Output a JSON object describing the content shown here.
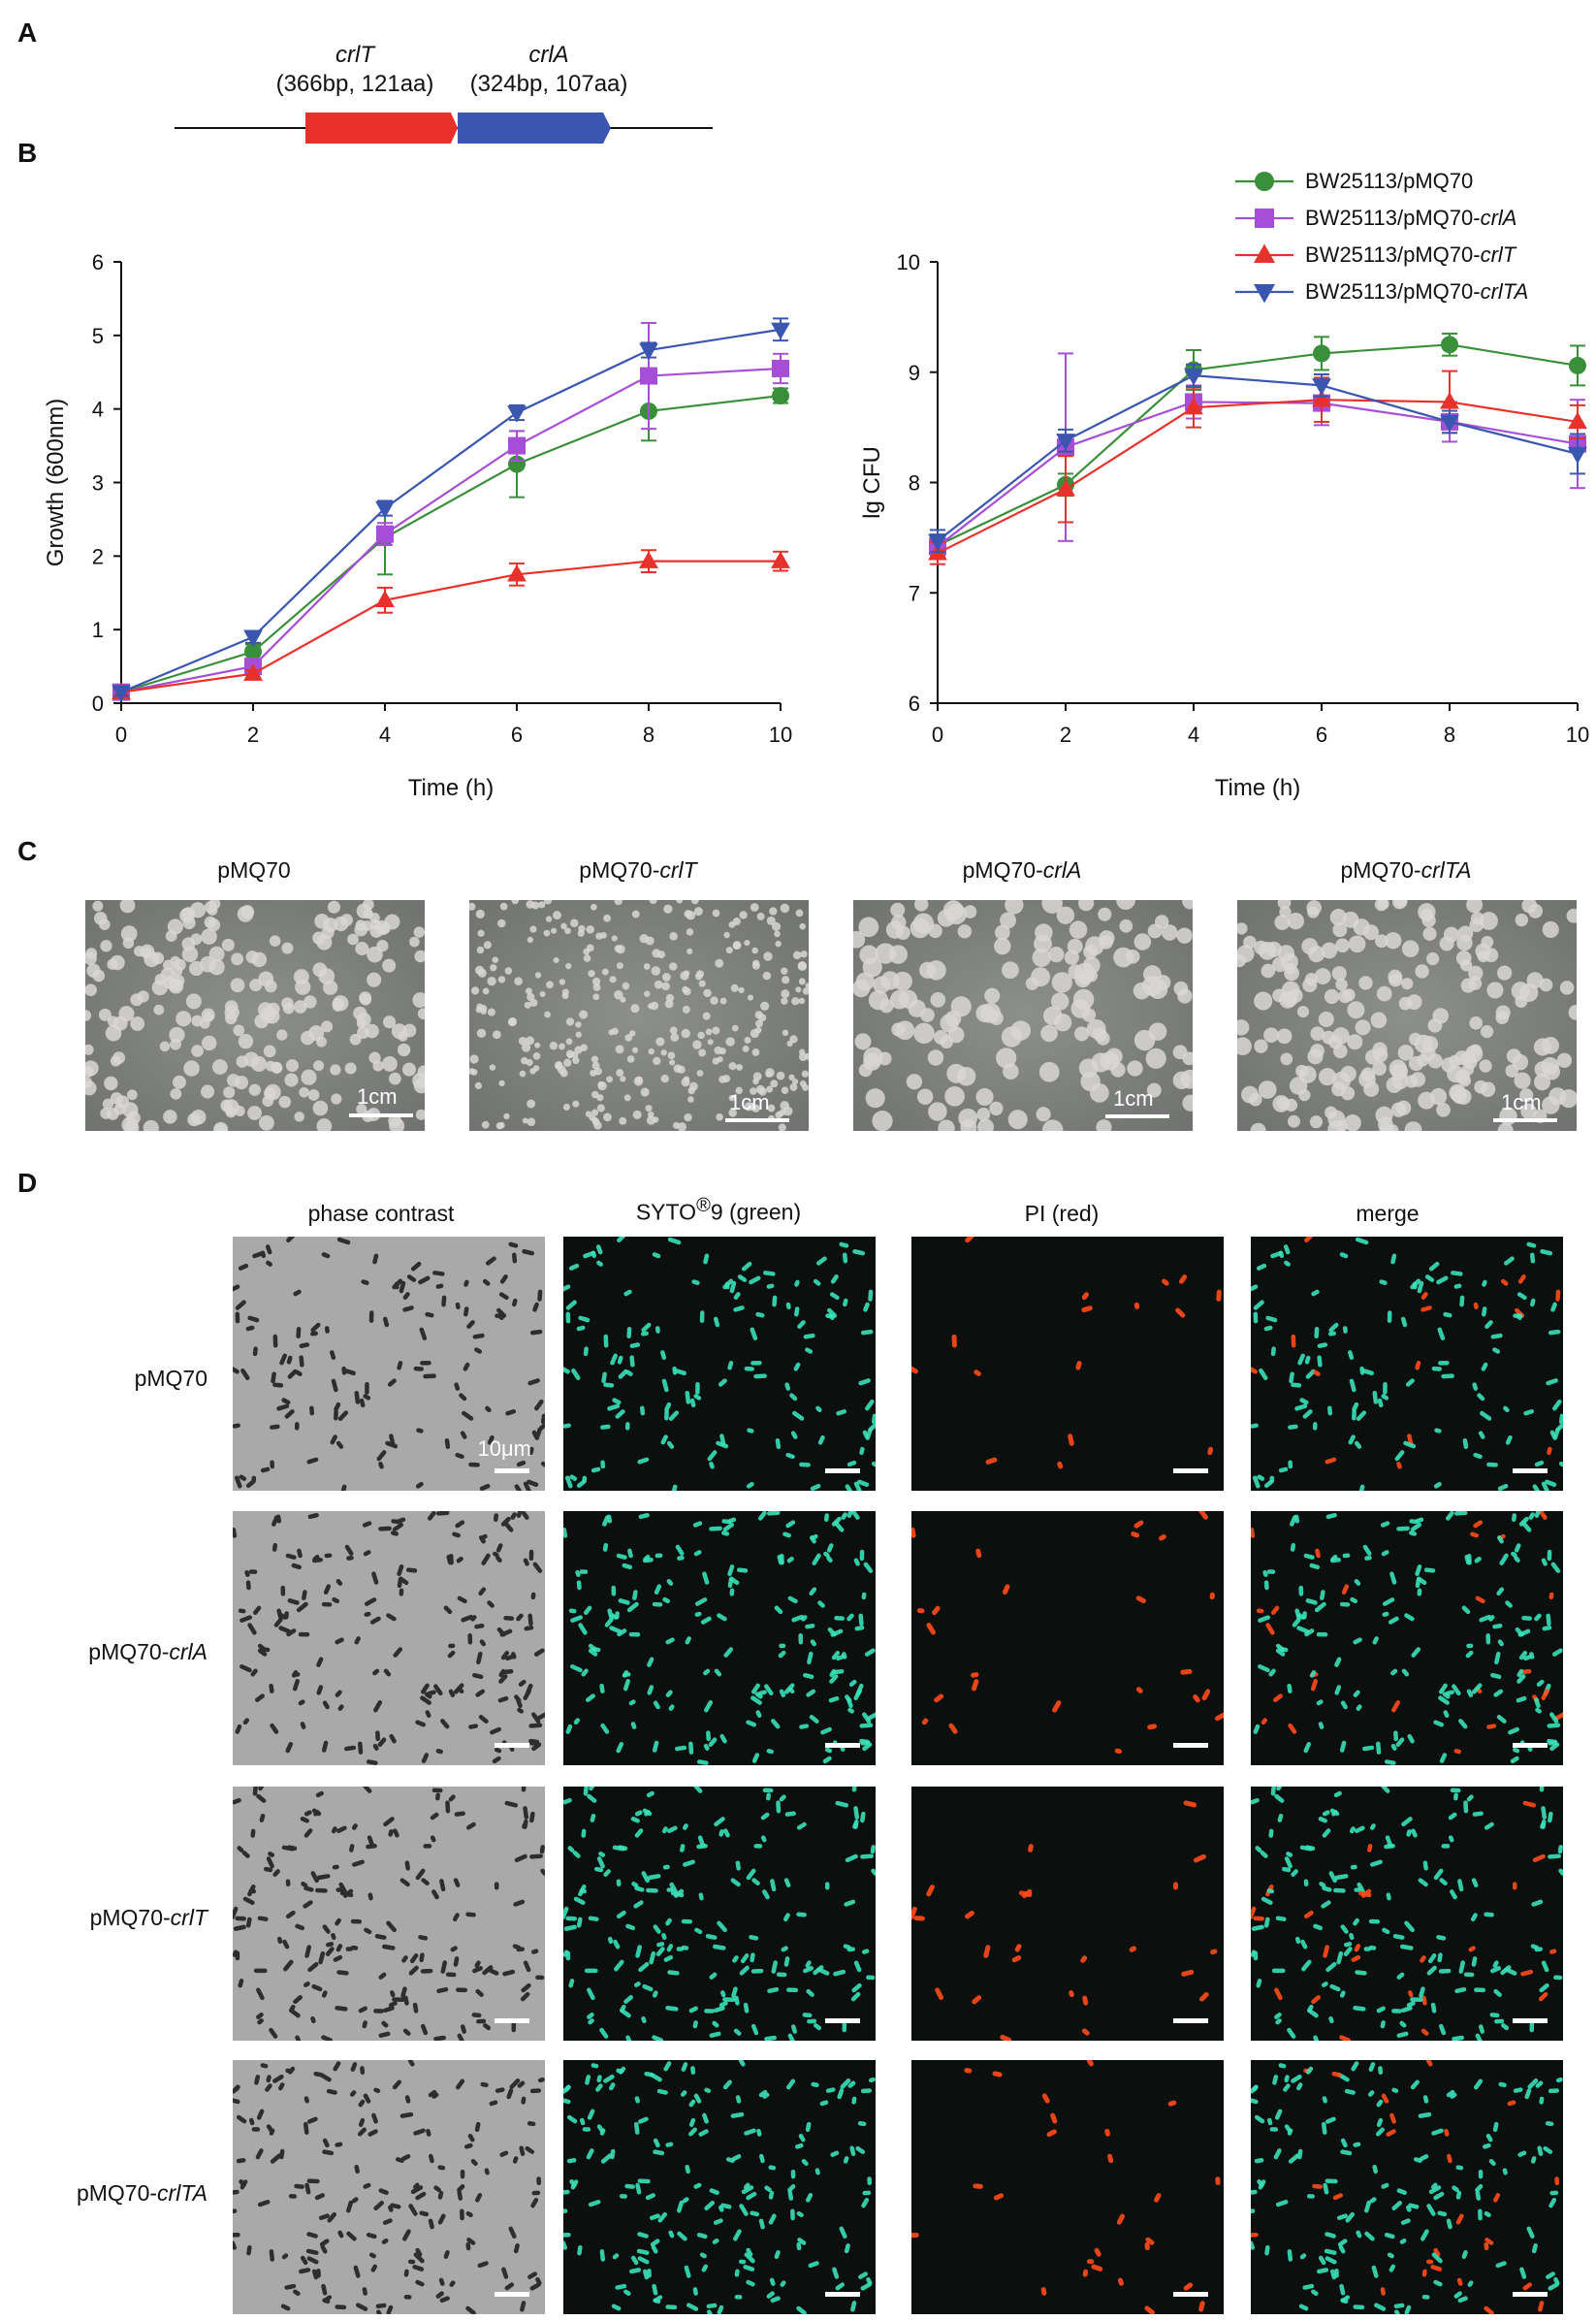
{
  "panels": {
    "a": "A",
    "b": "B",
    "c": "C",
    "d": "D"
  },
  "gene_diagram": {
    "genes": [
      {
        "name": "crlT",
        "info": "(366bp, 121aa)",
        "color": "#e8312a"
      },
      {
        "name": "crlA",
        "info": "(324bp, 107aa)",
        "color": "#3a56b0"
      }
    ]
  },
  "legend": [
    {
      "prefix": "BW25113/pMQ70",
      "suffix": "",
      "color": "#3a8f3a",
      "marker": "circle"
    },
    {
      "prefix": "BW25113/pMQ70-",
      "suffix": "crlA",
      "color": "#a64fd6",
      "marker": "square"
    },
    {
      "prefix": "BW25113/pMQ70-",
      "suffix": "crlT",
      "color": "#e8312a",
      "marker": "triangle-up"
    },
    {
      "prefix": "BW25113/pMQ70-",
      "suffix": "crlTA",
      "color": "#3a56b0",
      "marker": "triangle-down"
    }
  ],
  "chart_data": [
    {
      "type": "line",
      "xlabel": "Time (h)",
      "ylabel": "Growth (600nm)",
      "xlim": [
        0,
        10
      ],
      "ylim": [
        0,
        6
      ],
      "xticks": [
        "0",
        "2",
        "4",
        "6",
        "8",
        "10"
      ],
      "yticks": [
        "0",
        "1",
        "2",
        "3",
        "4",
        "5",
        "6"
      ],
      "x": [
        0,
        2,
        4,
        6,
        8,
        10
      ],
      "series": [
        {
          "name": "BW25113/pMQ70",
          "color": "#3a8f3a",
          "marker": "circle",
          "values": [
            0.15,
            0.7,
            2.25,
            3.25,
            3.97,
            4.18
          ],
          "err": [
            0.05,
            0.1,
            0.5,
            0.45,
            0.4,
            0.1
          ]
        },
        {
          "name": "BW25113/pMQ70-crlA",
          "color": "#a64fd6",
          "marker": "square",
          "values": [
            0.15,
            0.5,
            2.3,
            3.5,
            4.45,
            4.55
          ],
          "err": [
            0.05,
            0.08,
            0.15,
            0.2,
            0.72,
            0.2
          ]
        },
        {
          "name": "BW25113/pMQ70-crlT",
          "color": "#e8312a",
          "marker": "triangle-up",
          "values": [
            0.15,
            0.4,
            1.4,
            1.75,
            1.93,
            1.93
          ],
          "err": [
            0.05,
            0.05,
            0.17,
            0.15,
            0.15,
            0.13
          ]
        },
        {
          "name": "BW25113/pMQ70-crlTA",
          "color": "#3a56b0",
          "marker": "triangle-down",
          "values": [
            0.15,
            0.9,
            2.65,
            3.95,
            4.8,
            5.08
          ],
          "err": [
            0.05,
            0.08,
            0.1,
            0.1,
            0.1,
            0.15
          ]
        }
      ]
    },
    {
      "type": "line",
      "xlabel": "Time (h)",
      "ylabel": "lg CFU",
      "xlim": [
        0,
        10
      ],
      "ylim": [
        6,
        10
      ],
      "xticks": [
        "0",
        "2",
        "4",
        "6",
        "8",
        "10"
      ],
      "yticks": [
        "6",
        "7",
        "8",
        "9",
        "10"
      ],
      "x": [
        0,
        2,
        4,
        6,
        8,
        10
      ],
      "series": [
        {
          "name": "BW25113/pMQ70",
          "color": "#3a8f3a",
          "marker": "circle",
          "values": [
            7.43,
            7.98,
            9.02,
            9.17,
            9.25,
            9.06
          ],
          "err": [
            0.1,
            0.1,
            0.18,
            0.15,
            0.1,
            0.18
          ]
        },
        {
          "name": "BW25113/pMQ70-crlA",
          "color": "#a64fd6",
          "marker": "square",
          "values": [
            7.42,
            8.32,
            8.73,
            8.72,
            8.55,
            8.35
          ],
          "err": [
            0.1,
            0.85,
            0.15,
            0.2,
            0.18,
            0.4
          ]
        },
        {
          "name": "BW25113/pMQ70-crlT",
          "color": "#e8312a",
          "marker": "triangle-up",
          "values": [
            7.36,
            7.94,
            8.68,
            8.75,
            8.73,
            8.55
          ],
          "err": [
            0.1,
            0.3,
            0.18,
            0.2,
            0.28,
            0.15
          ]
        },
        {
          "name": "BW25113/pMQ70-crlTA",
          "color": "#3a56b0",
          "marker": "triangle-down",
          "values": [
            7.47,
            8.38,
            8.97,
            8.88,
            8.55,
            8.26
          ],
          "err": [
            0.1,
            0.1,
            0.1,
            0.1,
            0.1,
            0.18
          ]
        }
      ]
    }
  ],
  "plates": [
    {
      "prefix": "pMQ70",
      "suffix": "",
      "scale": "1cm",
      "density": 230,
      "size": 7
    },
    {
      "prefix": "pMQ70-",
      "suffix": "crlT",
      "scale": "1cm",
      "density": 320,
      "size": 4
    },
    {
      "prefix": "pMQ70-",
      "suffix": "crlA",
      "scale": "1cm",
      "density": 150,
      "size": 9
    },
    {
      "prefix": "pMQ70-",
      "suffix": "crlTA",
      "scale": "1cm",
      "density": 210,
      "size": 8
    }
  ],
  "microscopy": {
    "columns": [
      {
        "title_a": "phase contrast",
        "title_sup": "",
        "title_b": ""
      },
      {
        "title_a": "SYTO",
        "title_sup": "®",
        "title_b": "9 (green)"
      },
      {
        "title_a": "PI (red)",
        "title_sup": "",
        "title_b": ""
      },
      {
        "title_a": "merge",
        "title_sup": "",
        "title_b": ""
      }
    ],
    "rows": [
      {
        "prefix": "pMQ70",
        "suffix": ""
      },
      {
        "prefix": "pMQ70-",
        "suffix": "crlA"
      },
      {
        "prefix": "pMQ70-",
        "suffix": "crlT"
      },
      {
        "prefix": "pMQ70-",
        "suffix": "crlTA"
      }
    ],
    "scale_label": "10μm",
    "colors": {
      "phase_bg": "#a9a9a9",
      "phase_cell": "#2e2e2e",
      "fluor_bg": "#0b0f0e",
      "green": "#39e0b8",
      "red": "#ff4a1a"
    }
  }
}
